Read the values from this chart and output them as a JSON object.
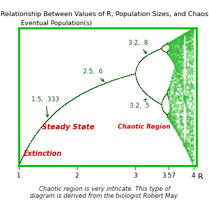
{
  "title": "Relationship Between Values of R, Population Sizes, and Chaos",
  "ylabel": "Eventual Population(s)",
  "xlabel": "R",
  "xlim": [
    1.0,
    4.05
  ],
  "ylim": [
    0.0,
    1.0
  ],
  "xticks": [
    1,
    2,
    3,
    3.57,
    4
  ],
  "frame_color": "#00bb00",
  "curve_color": "#005500",
  "extinction_color": "#cc0000",
  "steady_state_color": "#cc0000",
  "chaotic_region_color": "#cc0000",
  "annotation_color": "#005500",
  "background_color": "#ffffff",
  "subtitle": "Chaotic region is very intricate. This type of\ndiagram is derived from the biologist Robert May."
}
